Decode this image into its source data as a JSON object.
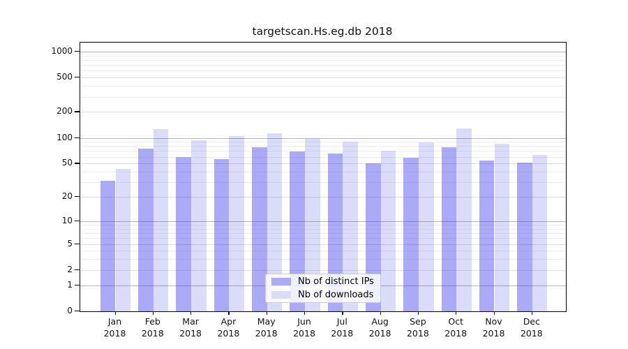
{
  "title": "targetscan.Hs.eg.db 2018",
  "chart_data": {
    "type": "bar",
    "title": "targetscan.Hs.eg.db 2018",
    "categories": [
      "Jan 2018",
      "Feb 2018",
      "Mar 2018",
      "Apr 2018",
      "May 2018",
      "Jun 2018",
      "Jul 2018",
      "Aug 2018",
      "Sep 2018",
      "Oct 2018",
      "Nov 2018",
      "Dec 2018"
    ],
    "x_months": [
      "Jan",
      "Feb",
      "Mar",
      "Apr",
      "May",
      "Jun",
      "Jul",
      "Aug",
      "Sep",
      "Oct",
      "Nov",
      "Dec"
    ],
    "x_year": "2018",
    "series": [
      {
        "name": "Nb of distinct IPs",
        "color": "#aaaaf8",
        "values": [
          31,
          75,
          60,
          56,
          77,
          69,
          66,
          50,
          58,
          77,
          54,
          51
        ]
      },
      {
        "name": "Nb of downloads",
        "color": "#dbdbfa",
        "values": [
          43,
          126,
          93,
          104,
          112,
          97,
          91,
          70,
          88,
          130,
          86,
          63
        ]
      }
    ],
    "y_scale": "log1p",
    "y_ticks": [
      0,
      1,
      2,
      5,
      10,
      20,
      50,
      100,
      200,
      500,
      1000
    ],
    "ylim": [
      0,
      1260
    ],
    "grid": "horizontal",
    "legend_position": "inside-bottom-center"
  },
  "legend": {
    "items": [
      {
        "label": "Nb of distinct IPs",
        "color": "#aaaaf8"
      },
      {
        "label": "Nb of downloads",
        "color": "#dbdbfa"
      }
    ]
  },
  "colors": {
    "background": "#ffffff",
    "frame": "#000000",
    "grid_decade": "#bdbdbd",
    "grid_labeled": "#e2e2e2",
    "grid_minor": "#f0f0f0",
    "text": "#111111",
    "legend_border": "#cccccc"
  }
}
